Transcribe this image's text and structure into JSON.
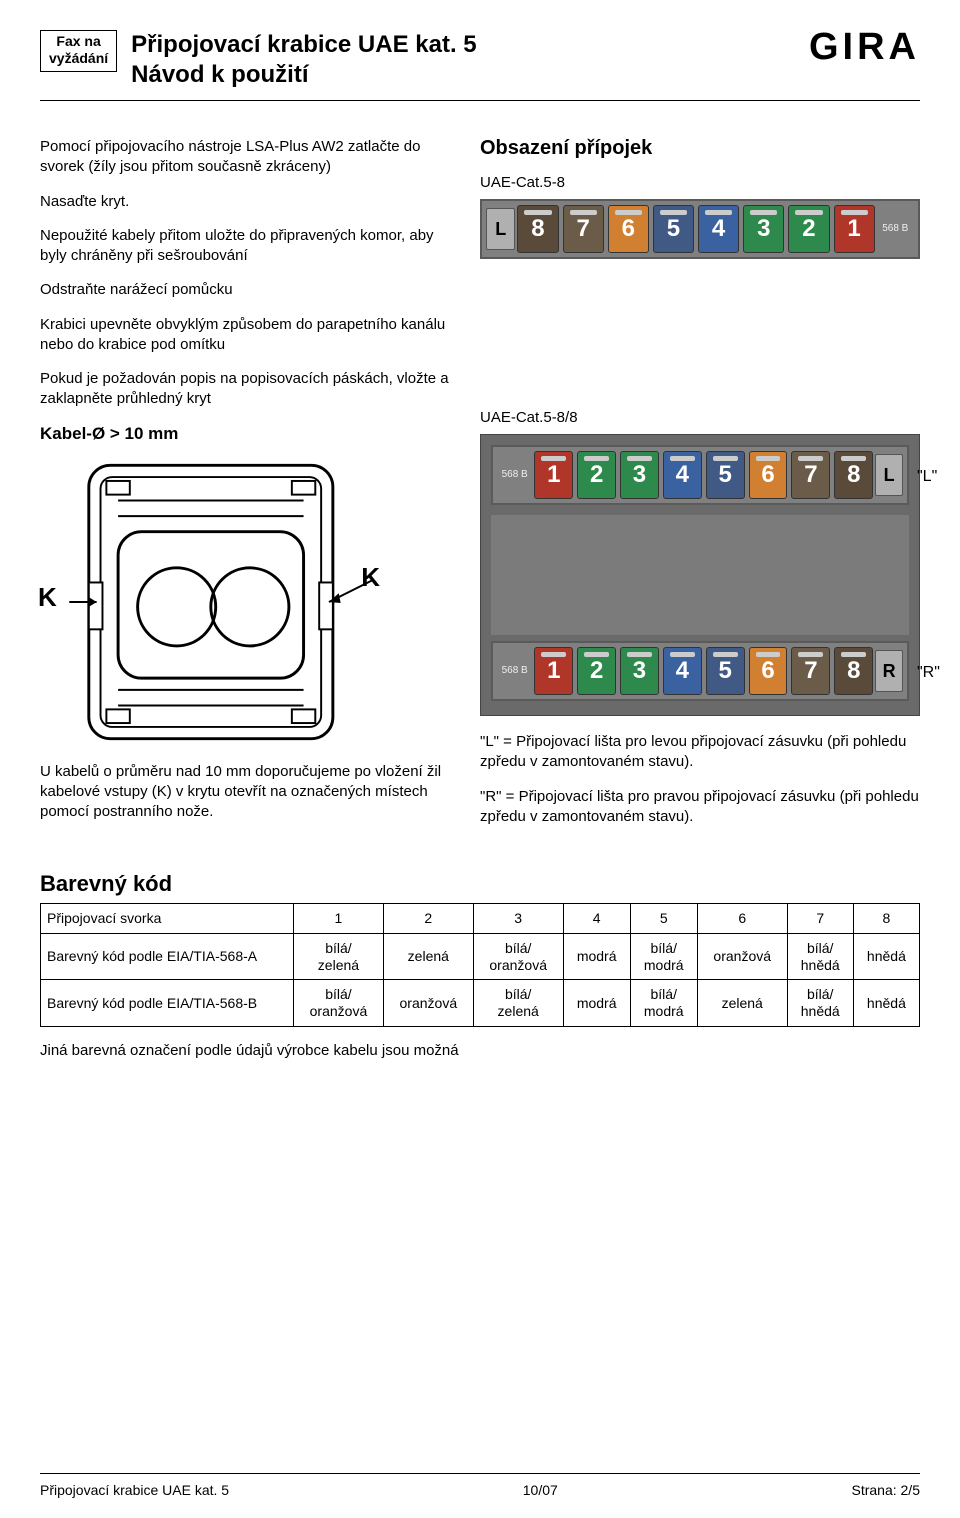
{
  "header": {
    "fax_box_line1": "Fax na",
    "fax_box_line2": "vyžádání",
    "title1": "Připojovací krabice UAE kat. 5",
    "title2": "Návod k použití",
    "logo": "GIRA"
  },
  "left": {
    "p1": "Pomocí připojovacího nástroje LSA-Plus AW2 zatlačte do svorek (žíly jsou přitom současně zkráceny)",
    "p2": "Nasaďte kryt.",
    "p3": "Nepoužité kabely přitom uložte do připravených komor, aby byly chráněny při sešroubování",
    "p4": "Odstraňte narážecí pomůcku",
    "p5": "Krabici upevněte obvyklým způsobem do parapetního kanálu nebo do krabice pod omítku",
    "p6": "Pokud je požadován popis na popisovacích páskách, vložte a zaklapněte průhledný kryt",
    "kabel_h": "Kabel-Ø > 10 mm",
    "k_label_left": "K",
    "k_label_right": "K",
    "p_below": "U kabelů o průměru nad 10 mm doporučujeme po vložení žil kabelové vstupy (K) v krytu otevřít na označených místech pomocí postranního nože."
  },
  "right": {
    "h2": "Obsazení přípojek",
    "cat58": "UAE-Cat.5-8",
    "cat588": "UAE-Cat.5-8/8",
    "strip_58": {
      "left_end": "L",
      "right_label": "568 B",
      "blocks": [
        {
          "n": "8",
          "c": "#5a4a3a"
        },
        {
          "n": "7",
          "c": "#6b5c4a"
        },
        {
          "n": "6",
          "c": "#d08030"
        },
        {
          "n": "5",
          "c": "#405a85"
        },
        {
          "n": "4",
          "c": "#3a62a0"
        },
        {
          "n": "3",
          "c": "#2e8a4c"
        },
        {
          "n": "2",
          "c": "#2e8a4c"
        },
        {
          "n": "1",
          "c": "#b0362a"
        }
      ]
    },
    "strip_88_top": {
      "left_label": "568 B",
      "right_end": "L",
      "blocks": [
        {
          "n": "1",
          "c": "#b0362a"
        },
        {
          "n": "2",
          "c": "#2e8a4c"
        },
        {
          "n": "3",
          "c": "#2e8a4c"
        },
        {
          "n": "4",
          "c": "#3a62a0"
        },
        {
          "n": "5",
          "c": "#405a85"
        },
        {
          "n": "6",
          "c": "#d08030"
        },
        {
          "n": "7",
          "c": "#6b5c4a"
        },
        {
          "n": "8",
          "c": "#5a4a3a"
        }
      ],
      "callout": "\"L\""
    },
    "strip_88_bottom": {
      "left_label": "568 B",
      "right_end": "R",
      "blocks": [
        {
          "n": "1",
          "c": "#b0362a"
        },
        {
          "n": "2",
          "c": "#2e8a4c"
        },
        {
          "n": "3",
          "c": "#2e8a4c"
        },
        {
          "n": "4",
          "c": "#3a62a0"
        },
        {
          "n": "5",
          "c": "#405a85"
        },
        {
          "n": "6",
          "c": "#d08030"
        },
        {
          "n": "7",
          "c": "#6b5c4a"
        },
        {
          "n": "8",
          "c": "#5a4a3a"
        }
      ],
      "callout": "\"R\""
    },
    "p_L": "\"L\" = Připojovací lišta pro levou připojovací zásuvku (při pohledu zpředu v zamontovaném stavu).",
    "p_R": "\"R\" = Připojovací lišta pro pravou připojovací zásuvku (při pohledu zpředu v zamontovaném stavu)."
  },
  "colorcode": {
    "section_title": "Barevný kód",
    "header_row": [
      "Připojovací svorka",
      "1",
      "2",
      "3",
      "4",
      "5",
      "6",
      "7",
      "8"
    ],
    "row_a_label": "Barevný kód podle EIA/TIA-568-A",
    "row_a": [
      "bílá/\nzelená",
      "zelená",
      "bílá/\noranžová",
      "modrá",
      "bílá/\nmodrá",
      "oranžová",
      "bílá/\nhnědá",
      "hnědá"
    ],
    "row_b_label": "Barevný kód podle EIA/TIA-568-B",
    "row_b": [
      "bílá/\noranžová",
      "oranžová",
      "bílá/\nzelená",
      "modrá",
      "bílá/\nmodrá",
      "zelená",
      "bílá/\nhnědá",
      "hnědá"
    ],
    "note": "Jiná barevná označení podle údajů výrobce kabelu jsou možná"
  },
  "footer": {
    "left": "Připojovací krabice UAE kat. 5",
    "center": "10/07",
    "right": "Strana: 2/5"
  }
}
